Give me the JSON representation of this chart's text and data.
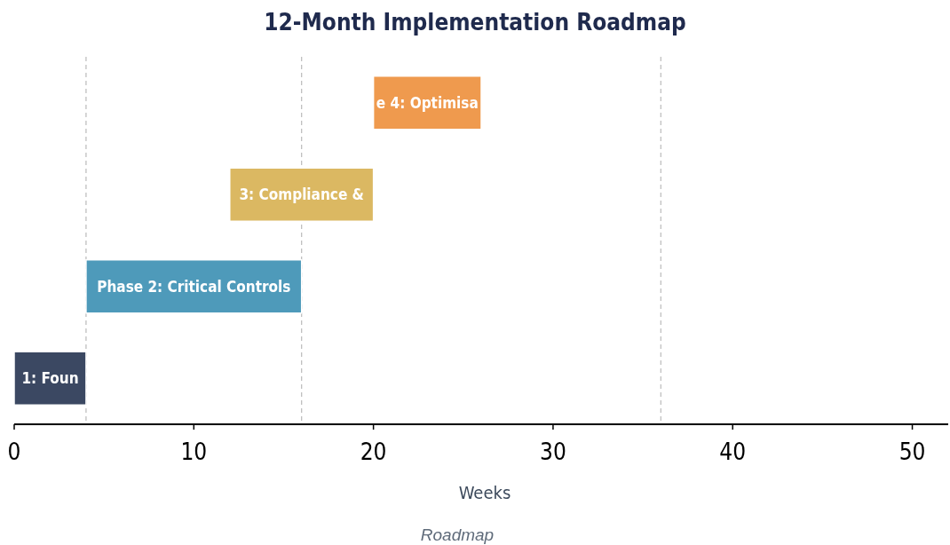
{
  "chart_data": {
    "type": "bar",
    "orientation": "horizontal",
    "title": "12-Month Implementation Roadmap",
    "xlabel": "Weeks",
    "categories": [
      null,
      null,
      null,
      null
    ],
    "base": [
      20,
      12,
      4,
      0
    ],
    "values": [
      6,
      8,
      12,
      4
    ],
    "colors": [
      "#ef9a4e",
      "#dbb862",
      "#4e9aba",
      "#3b4862"
    ],
    "xlim": [
      0,
      52
    ],
    "xticks": [
      0,
      10,
      20,
      30,
      40,
      50
    ],
    "ref_lines": [
      {
        "axis": "x",
        "value": 4,
        "color": "#bbbbbb",
        "line_style": "dashed"
      },
      {
        "axis": "x",
        "value": 16,
        "color": "#bbbbbb",
        "line_style": "dashed"
      },
      {
        "axis": "x",
        "value": 36,
        "color": "#bbbbbb",
        "line_style": "dashed"
      }
    ],
    "grid": false,
    "tick_labels": "x",
    "annotations": [
      "e 4: Optimisa",
      "3: Compliance &",
      "Phase 2: Critical Controls",
      "1: Foun",
      "Roadmap"
    ]
  }
}
